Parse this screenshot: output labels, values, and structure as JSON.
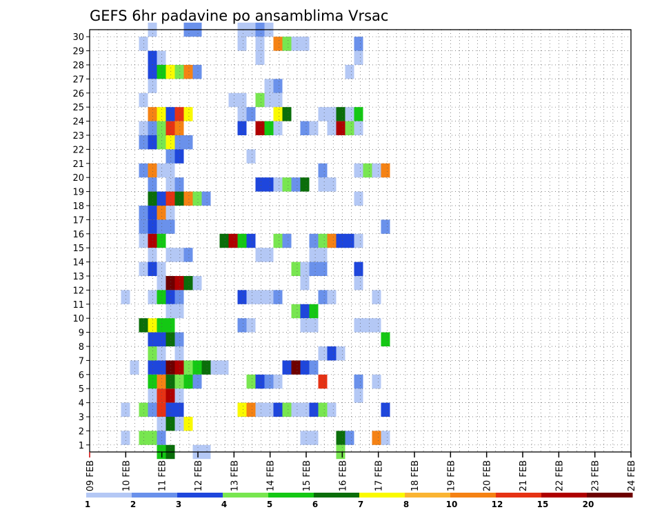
{
  "chart_data": {
    "type": "heatmap",
    "title": "GEFS 6hr padavine po ansamblima Vrsac",
    "xlabel": "",
    "ylabel": "",
    "x_tick_labels": [
      "09 FEB",
      "10 FEB",
      "11 FEB",
      "12 FEB",
      "13 FEB",
      "14 FEB",
      "15 FEB",
      "16 FEB",
      "17 FEB",
      "18 FEB",
      "19 FEB",
      "20 FEB",
      "21 FEB",
      "22 FEB",
      "23 FEB",
      "24 FEB"
    ],
    "y_tick_labels": [
      "1",
      "2",
      "3",
      "4",
      "5",
      "6",
      "7",
      "8",
      "9",
      "10",
      "11",
      "12",
      "13",
      "14",
      "15",
      "16",
      "17",
      "18",
      "19",
      "20",
      "21",
      "22",
      "23",
      "24",
      "25",
      "26",
      "27",
      "28",
      "29",
      "30"
    ],
    "xlim": [
      0,
      60
    ],
    "ylim": [
      0,
      30
    ],
    "grid": true,
    "colorbar": {
      "labels": [
        "1",
        "2",
        "3",
        "4",
        "5",
        "6",
        "7",
        "8",
        "10",
        "12",
        "15",
        "20"
      ],
      "colors": [
        "#b4c8f5",
        "#6a91eb",
        "#1e46dc",
        "#78e650",
        "#14c814",
        "#0a6e0a",
        "#fafa00",
        "#fab432",
        "#f58214",
        "#e63214",
        "#af0000",
        "#6e0000"
      ]
    },
    "cell_value_note": "",
    "cells": [
      [
        7,
        30,
        1
      ],
      [
        11,
        30,
        2
      ],
      [
        12,
        30,
        2
      ],
      [
        17,
        30,
        1
      ],
      [
        18,
        30,
        1
      ],
      [
        19,
        30,
        2
      ],
      [
        20,
        30,
        1
      ],
      [
        6,
        29,
        1
      ],
      [
        17,
        29,
        1
      ],
      [
        19,
        29,
        1
      ],
      [
        21,
        29,
        9
      ],
      [
        22,
        29,
        4
      ],
      [
        23,
        29,
        1
      ],
      [
        24,
        29,
        1
      ],
      [
        30,
        29,
        2
      ],
      [
        7,
        28,
        3
      ],
      [
        8,
        28,
        1
      ],
      [
        19,
        28,
        1
      ],
      [
        30,
        28,
        1
      ],
      [
        7,
        27,
        3
      ],
      [
        8,
        27,
        5
      ],
      [
        9,
        27,
        7
      ],
      [
        10,
        27,
        4
      ],
      [
        11,
        27,
        9
      ],
      [
        12,
        27,
        2
      ],
      [
        29,
        27,
        1
      ],
      [
        7,
        26,
        1
      ],
      [
        20,
        26,
        1
      ],
      [
        21,
        26,
        2
      ],
      [
        6,
        25,
        1
      ],
      [
        16,
        25,
        1
      ],
      [
        17,
        25,
        1
      ],
      [
        19,
        25,
        4
      ],
      [
        20,
        25,
        1
      ],
      [
        21,
        25,
        1
      ],
      [
        7,
        24,
        9
      ],
      [
        8,
        24,
        7
      ],
      [
        9,
        24,
        3
      ],
      [
        10,
        24,
        10
      ],
      [
        11,
        24,
        7
      ],
      [
        17,
        24,
        1
      ],
      [
        18,
        24,
        2
      ],
      [
        21,
        24,
        7
      ],
      [
        22,
        24,
        6
      ],
      [
        26,
        24,
        1
      ],
      [
        27,
        24,
        1
      ],
      [
        28,
        24,
        6
      ],
      [
        29,
        24,
        1
      ],
      [
        30,
        24,
        5
      ],
      [
        6,
        23,
        1
      ],
      [
        7,
        23,
        2
      ],
      [
        8,
        23,
        4
      ],
      [
        9,
        23,
        10
      ],
      [
        10,
        23,
        9
      ],
      [
        17,
        23,
        3
      ],
      [
        19,
        23,
        11
      ],
      [
        20,
        23,
        5
      ],
      [
        21,
        23,
        1
      ],
      [
        24,
        23,
        2
      ],
      [
        25,
        23,
        1
      ],
      [
        27,
        23,
        1
      ],
      [
        28,
        23,
        11
      ],
      [
        29,
        23,
        4
      ],
      [
        30,
        23,
        1
      ],
      [
        6,
        22,
        2
      ],
      [
        7,
        22,
        3
      ],
      [
        8,
        22,
        4
      ],
      [
        9,
        22,
        7
      ],
      [
        10,
        22,
        2
      ],
      [
        11,
        22,
        2
      ],
      [
        9,
        21,
        2
      ],
      [
        10,
        21,
        3
      ],
      [
        18,
        21,
        1
      ],
      [
        6,
        20,
        2
      ],
      [
        7,
        20,
        9
      ],
      [
        8,
        20,
        1
      ],
      [
        9,
        20,
        1
      ],
      [
        26,
        20,
        2
      ],
      [
        30,
        20,
        1
      ],
      [
        31,
        20,
        4
      ],
      [
        32,
        20,
        1
      ],
      [
        33,
        20,
        9
      ],
      [
        7,
        19,
        2
      ],
      [
        9,
        19,
        1
      ],
      [
        10,
        19,
        2
      ],
      [
        19,
        19,
        3
      ],
      [
        20,
        19,
        3
      ],
      [
        21,
        19,
        1
      ],
      [
        22,
        19,
        4
      ],
      [
        23,
        19,
        2
      ],
      [
        24,
        19,
        6
      ],
      [
        26,
        19,
        1
      ],
      [
        27,
        19,
        1
      ],
      [
        7,
        18,
        6
      ],
      [
        8,
        18,
        3
      ],
      [
        9,
        18,
        10
      ],
      [
        10,
        18,
        6
      ],
      [
        11,
        18,
        9
      ],
      [
        12,
        18,
        4
      ],
      [
        13,
        18,
        2
      ],
      [
        30,
        18,
        1
      ],
      [
        6,
        17,
        2
      ],
      [
        7,
        17,
        3
      ],
      [
        8,
        17,
        9
      ],
      [
        9,
        17,
        1
      ],
      [
        6,
        16,
        2
      ],
      [
        7,
        16,
        3
      ],
      [
        8,
        16,
        2
      ],
      [
        9,
        16,
        2
      ],
      [
        33,
        16,
        2
      ],
      [
        6,
        15,
        1
      ],
      [
        7,
        15,
        11
      ],
      [
        8,
        15,
        5
      ],
      [
        15,
        15,
        6
      ],
      [
        16,
        15,
        11
      ],
      [
        17,
        15,
        5
      ],
      [
        18,
        15,
        3
      ],
      [
        21,
        15,
        4
      ],
      [
        22,
        15,
        2
      ],
      [
        25,
        15,
        2
      ],
      [
        26,
        15,
        4
      ],
      [
        27,
        15,
        9
      ],
      [
        28,
        15,
        3
      ],
      [
        29,
        15,
        3
      ],
      [
        30,
        15,
        1
      ],
      [
        7,
        14,
        1
      ],
      [
        9,
        14,
        1
      ],
      [
        10,
        14,
        1
      ],
      [
        11,
        14,
        2
      ],
      [
        19,
        14,
        1
      ],
      [
        20,
        14,
        1
      ],
      [
        25,
        14,
        1
      ],
      [
        26,
        14,
        1
      ],
      [
        6,
        13,
        1
      ],
      [
        7,
        13,
        3
      ],
      [
        8,
        13,
        1
      ],
      [
        23,
        13,
        4
      ],
      [
        24,
        13,
        1
      ],
      [
        25,
        13,
        2
      ],
      [
        26,
        13,
        2
      ],
      [
        30,
        13,
        3
      ],
      [
        8,
        12,
        1
      ],
      [
        9,
        12,
        12
      ],
      [
        10,
        12,
        11
      ],
      [
        11,
        12,
        6
      ],
      [
        12,
        12,
        1
      ],
      [
        24,
        12,
        1
      ],
      [
        30,
        12,
        1
      ],
      [
        4,
        11,
        1
      ],
      [
        7,
        11,
        1
      ],
      [
        8,
        11,
        5
      ],
      [
        9,
        11,
        3
      ],
      [
        10,
        11,
        2
      ],
      [
        17,
        11,
        3
      ],
      [
        18,
        11,
        1
      ],
      [
        19,
        11,
        1
      ],
      [
        20,
        11,
        1
      ],
      [
        21,
        11,
        2
      ],
      [
        26,
        11,
        2
      ],
      [
        27,
        11,
        1
      ],
      [
        32,
        11,
        1
      ],
      [
        9,
        10,
        1
      ],
      [
        10,
        10,
        1
      ],
      [
        23,
        10,
        4
      ],
      [
        24,
        10,
        3
      ],
      [
        25,
        10,
        5
      ],
      [
        6,
        9,
        6
      ],
      [
        7,
        9,
        7
      ],
      [
        8,
        9,
        5
      ],
      [
        9,
        9,
        5
      ],
      [
        17,
        9,
        2
      ],
      [
        18,
        9,
        1
      ],
      [
        24,
        9,
        1
      ],
      [
        25,
        9,
        1
      ],
      [
        30,
        9,
        1
      ],
      [
        31,
        9,
        1
      ],
      [
        32,
        9,
        1
      ],
      [
        7,
        8,
        3
      ],
      [
        8,
        8,
        3
      ],
      [
        9,
        8,
        6
      ],
      [
        10,
        8,
        2
      ],
      [
        33,
        8,
        5
      ],
      [
        7,
        7,
        4
      ],
      [
        8,
        7,
        1
      ],
      [
        10,
        7,
        1
      ],
      [
        26,
        7,
        1
      ],
      [
        27,
        7,
        3
      ],
      [
        28,
        7,
        1
      ],
      [
        5,
        6,
        1
      ],
      [
        7,
        6,
        3
      ],
      [
        8,
        6,
        3
      ],
      [
        9,
        6,
        12
      ],
      [
        10,
        6,
        11
      ],
      [
        11,
        6,
        4
      ],
      [
        12,
        6,
        5
      ],
      [
        13,
        6,
        6
      ],
      [
        14,
        6,
        1
      ],
      [
        15,
        6,
        1
      ],
      [
        22,
        6,
        3
      ],
      [
        23,
        6,
        12
      ],
      [
        24,
        6,
        3
      ],
      [
        25,
        6,
        2
      ],
      [
        7,
        5,
        5
      ],
      [
        8,
        5,
        9
      ],
      [
        9,
        5,
        6
      ],
      [
        10,
        5,
        4
      ],
      [
        11,
        5,
        5
      ],
      [
        12,
        5,
        2
      ],
      [
        18,
        5,
        4
      ],
      [
        19,
        5,
        3
      ],
      [
        20,
        5,
        2
      ],
      [
        21,
        5,
        1
      ],
      [
        26,
        5,
        10
      ],
      [
        30,
        5,
        2
      ],
      [
        32,
        5,
        1
      ],
      [
        7,
        4,
        1
      ],
      [
        8,
        4,
        10
      ],
      [
        9,
        4,
        11
      ],
      [
        10,
        4,
        1
      ],
      [
        30,
        4,
        1
      ],
      [
        4,
        3,
        1
      ],
      [
        6,
        3,
        4
      ],
      [
        7,
        3,
        2
      ],
      [
        8,
        3,
        10
      ],
      [
        9,
        3,
        3
      ],
      [
        10,
        3,
        3
      ],
      [
        17,
        3,
        7
      ],
      [
        18,
        3,
        9
      ],
      [
        19,
        3,
        1
      ],
      [
        20,
        3,
        1
      ],
      [
        21,
        3,
        3
      ],
      [
        22,
        3,
        4
      ],
      [
        23,
        3,
        1
      ],
      [
        24,
        3,
        1
      ],
      [
        25,
        3,
        3
      ],
      [
        26,
        3,
        4
      ],
      [
        27,
        3,
        1
      ],
      [
        33,
        3,
        3
      ],
      [
        8,
        2,
        1
      ],
      [
        9,
        2,
        6
      ],
      [
        10,
        2,
        1
      ],
      [
        11,
        2,
        7
      ],
      [
        4,
        1,
        1
      ],
      [
        6,
        1,
        4
      ],
      [
        7,
        1,
        4
      ],
      [
        8,
        1,
        2
      ],
      [
        24,
        1,
        1
      ],
      [
        25,
        1,
        1
      ],
      [
        28,
        1,
        6
      ],
      [
        29,
        1,
        2
      ],
      [
        32,
        1,
        9
      ],
      [
        33,
        1,
        1
      ],
      [
        8,
        0,
        5
      ],
      [
        9,
        0,
        6
      ],
      [
        12,
        0,
        1
      ],
      [
        13,
        0,
        1
      ],
      [
        28,
        0,
        4
      ]
    ]
  }
}
